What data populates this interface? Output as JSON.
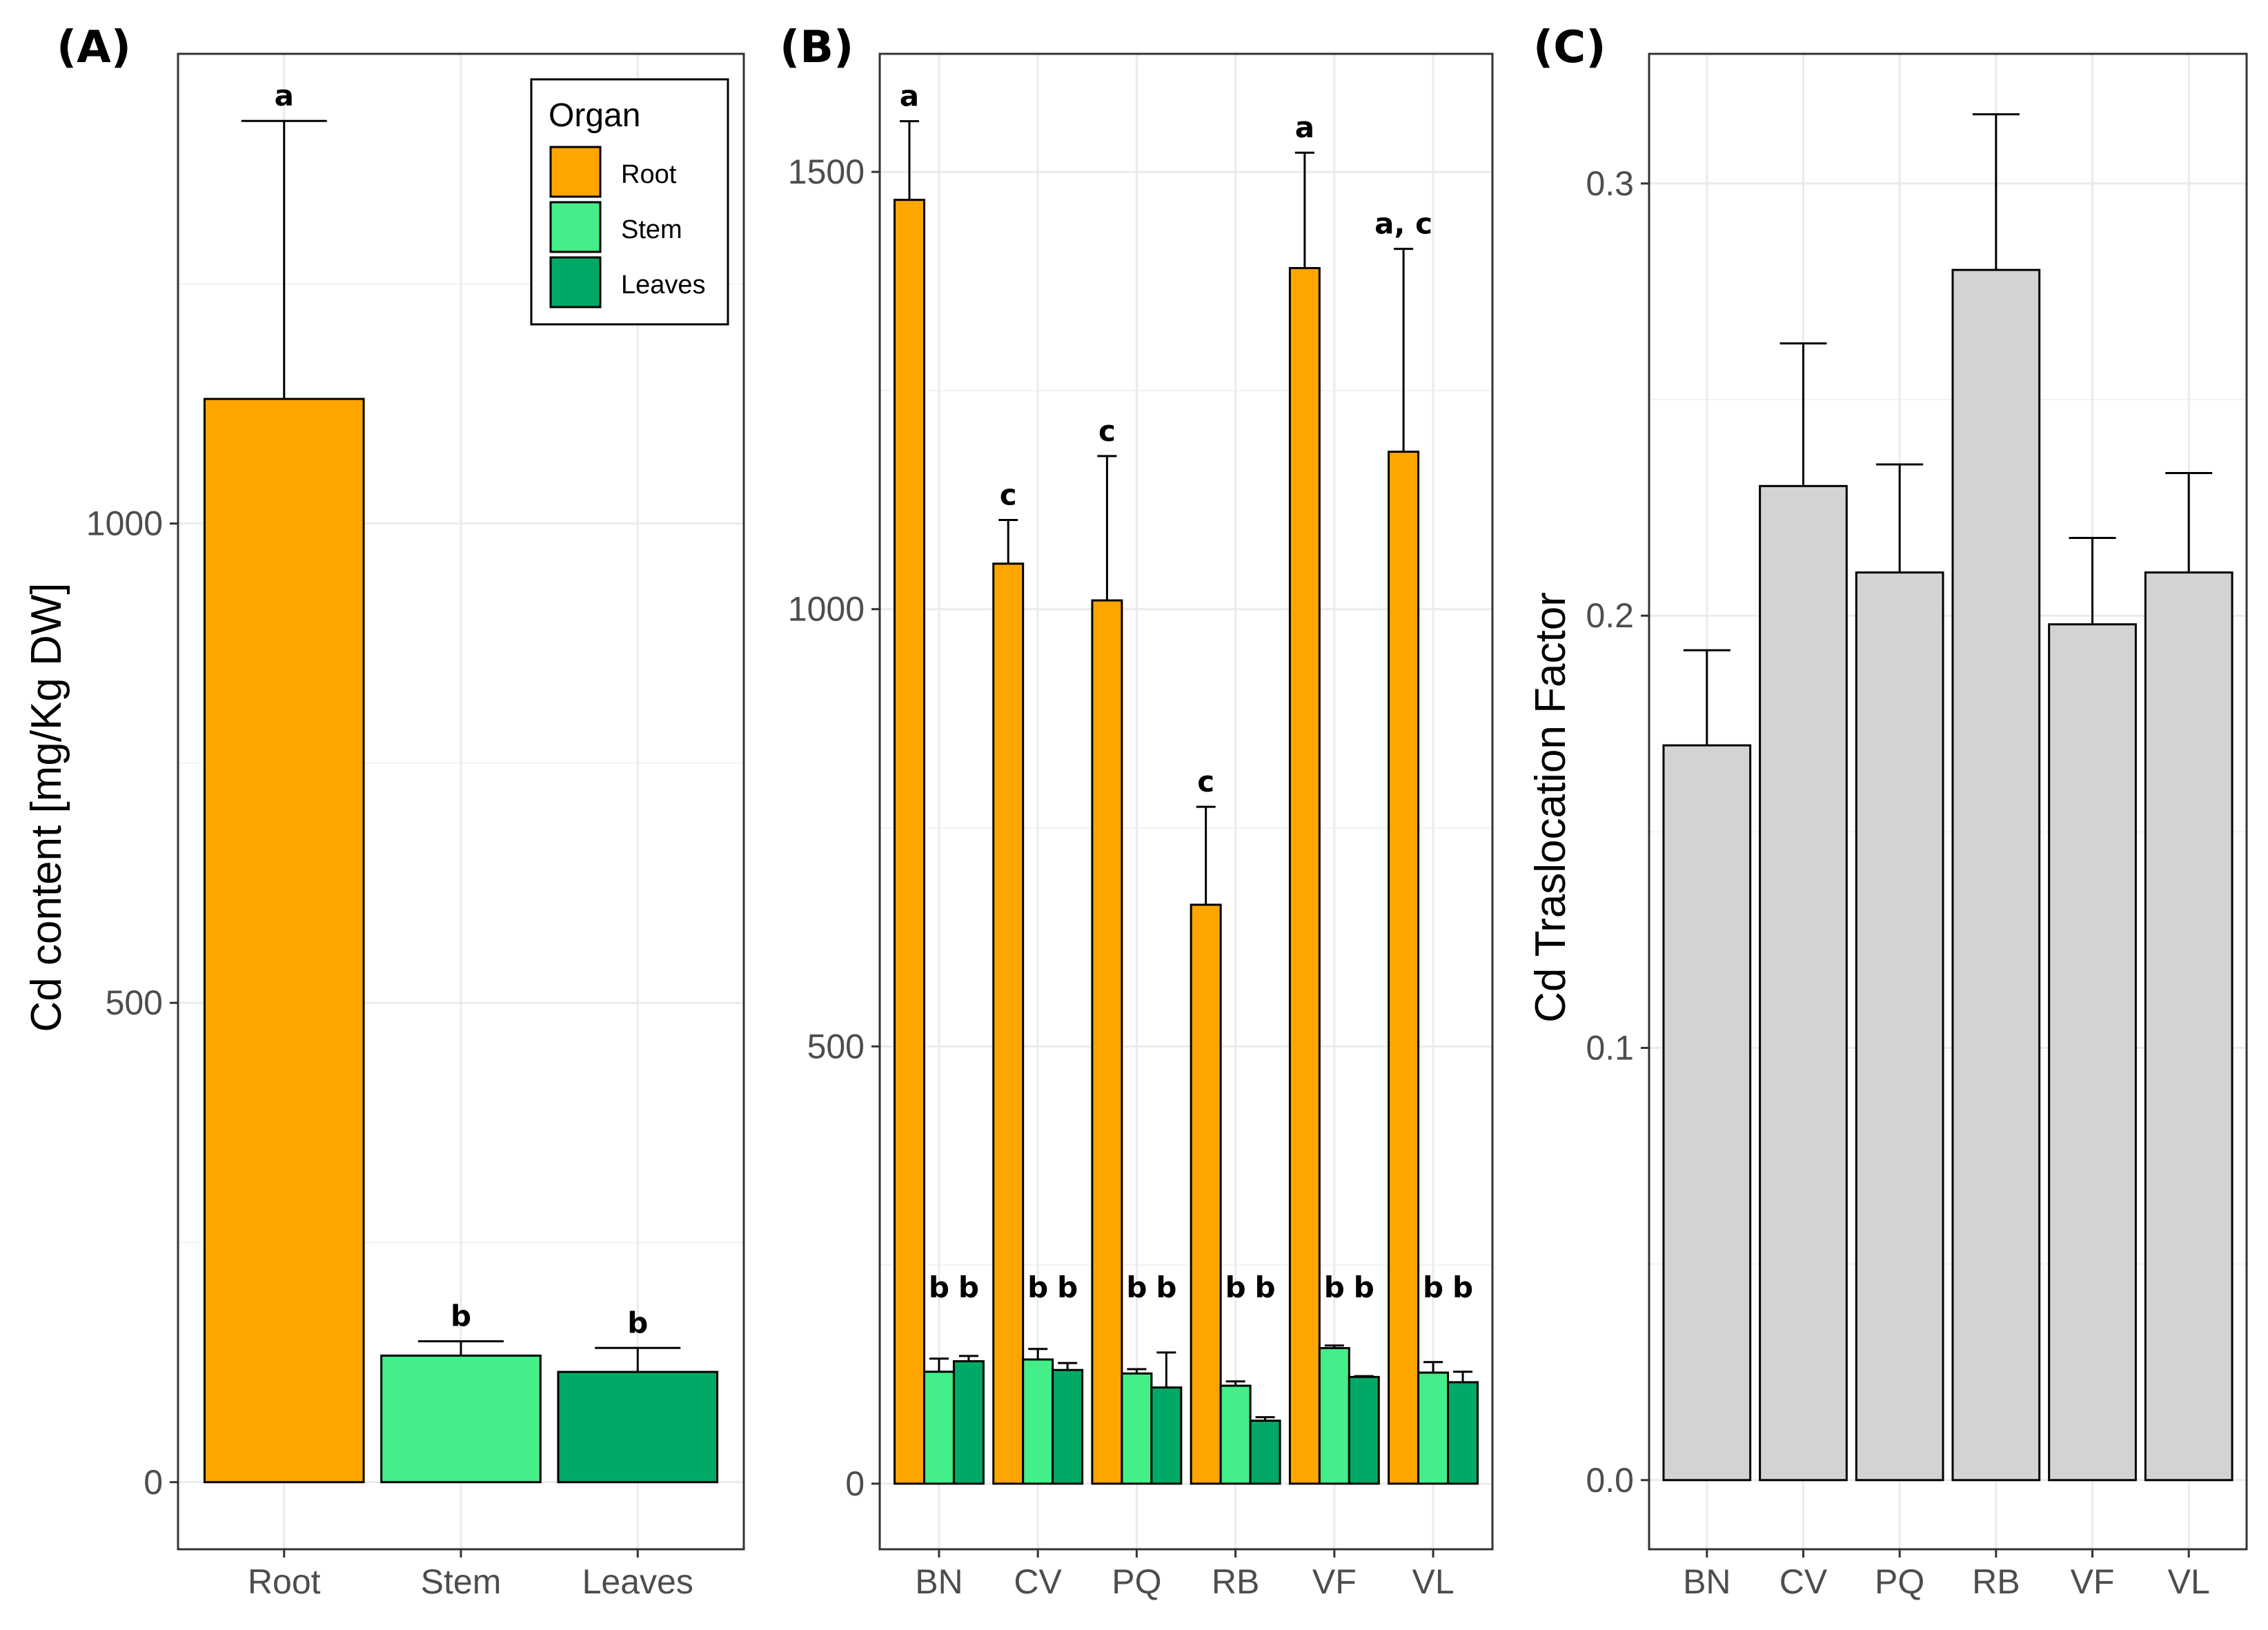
{
  "chart_data": [
    {
      "panel": "(A)",
      "type": "bar",
      "title": "",
      "ylabel": "Cd content [mg/Kg DW]",
      "xlabel": "",
      "ylim": [
        -70,
        1490
      ],
      "yticks": [
        0,
        500,
        1000
      ],
      "ytick_labels": [
        "0",
        "500",
        "1000"
      ],
      "categories": [
        "Root",
        "Stem",
        "Leaves"
      ],
      "values": [
        1130,
        132,
        115
      ],
      "errors": [
        290,
        15,
        25
      ],
      "significance": [
        "a",
        "b",
        "b"
      ],
      "colors": [
        "#FFA500",
        "#44EE88",
        "#00AA66"
      ],
      "grid": true,
      "legend": {
        "title": "Organ",
        "position": "top-right",
        "items": [
          {
            "label": "Root",
            "color": "#FFA500"
          },
          {
            "label": "Stem",
            "color": "#44EE88"
          },
          {
            "label": "Leaves",
            "color": "#00AA66"
          }
        ]
      }
    },
    {
      "panel": "(B)",
      "type": "bar",
      "title": "",
      "ylabel": "",
      "xlabel": "",
      "ylim": [
        -75,
        1635
      ],
      "yticks": [
        0,
        500,
        1000,
        1500
      ],
      "ytick_labels": [
        "0",
        "500",
        "1000",
        "1500"
      ],
      "categories": [
        "BN",
        "CV",
        "PQ",
        "RB",
        "VF",
        "VL"
      ],
      "series": [
        {
          "name": "Root",
          "color": "#FFA500",
          "values": [
            1468,
            1052,
            1010,
            662,
            1390,
            1180
          ],
          "errors": [
            90,
            50,
            165,
            112,
            132,
            232
          ],
          "significance": [
            "a",
            "c",
            "c",
            "c",
            "a",
            "a, c"
          ]
        },
        {
          "name": "Stem",
          "color": "#44EE88",
          "values": [
            128,
            142,
            126,
            112,
            155,
            127
          ],
          "errors": [
            15,
            12,
            5,
            5,
            3,
            12
          ],
          "significance": [
            "b",
            "b",
            "b",
            "b",
            "b",
            "b"
          ]
        },
        {
          "name": "Leaves",
          "color": "#00AA66",
          "values": [
            140,
            130,
            110,
            72,
            122,
            116
          ],
          "errors": [
            6,
            8,
            40,
            4,
            1,
            12
          ],
          "significance": [
            "b",
            "b",
            "b",
            "b",
            "b",
            "b"
          ]
        }
      ],
      "grid": true
    },
    {
      "panel": "(C)",
      "type": "bar",
      "title": "",
      "ylabel": "Cd Traslocation Factor",
      "xlabel": "",
      "ylim": [
        -0.016,
        0.33
      ],
      "yticks": [
        0.0,
        0.1,
        0.2,
        0.3
      ],
      "ytick_labels": [
        "0.0",
        "0.1",
        "0.2",
        "0.3"
      ],
      "categories": [
        "BN",
        "CV",
        "PQ",
        "RB",
        "VF",
        "VL"
      ],
      "values": [
        0.17,
        0.23,
        0.21,
        0.28,
        0.198,
        0.21
      ],
      "errors": [
        0.022,
        0.033,
        0.025,
        0.036,
        0.02,
        0.023
      ],
      "color": "#D3D3D3",
      "grid": true
    }
  ]
}
